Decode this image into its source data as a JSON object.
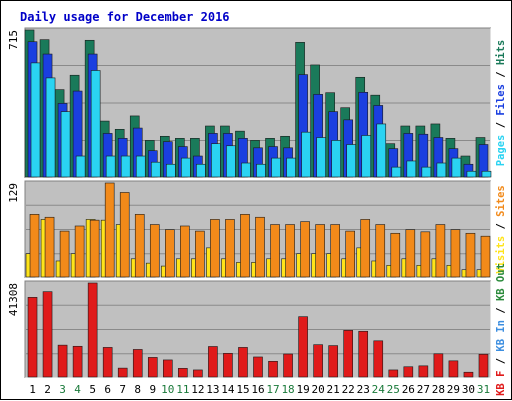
{
  "chart_data": {
    "type": "bar",
    "title": "Daily usage for December 2016",
    "categories": [
      "1",
      "2",
      "3",
      "4",
      "5",
      "6",
      "7",
      "8",
      "9",
      "10",
      "11",
      "12",
      "13",
      "14",
      "15",
      "16",
      "17",
      "18",
      "19",
      "20",
      "21",
      "22",
      "23",
      "24",
      "25",
      "26",
      "27",
      "28",
      "29",
      "30",
      "31"
    ],
    "weekend_days": [
      "3",
      "4",
      "10",
      "11",
      "17",
      "18",
      "24",
      "25",
      "31"
    ],
    "panels": [
      {
        "id": "top",
        "max_label": "715",
        "ylim": [
          0,
          715
        ],
        "series": [
          {
            "name": "Hits",
            "color": "#1a7a5a",
            "values": [
              715,
              668,
              425,
              495,
              665,
              272,
              232,
              297,
              178,
              198,
              188,
              188,
              248,
              248,
              223,
              178,
              188,
              198,
              655,
              545,
              410,
              337,
              485,
              398,
              162,
              248,
              248,
              258,
              188,
              102,
              192
            ]
          },
          {
            "name": "Files",
            "color": "#1a3fe0",
            "values": [
              658,
              598,
              358,
              418,
              598,
              212,
              188,
              238,
              128,
              172,
              148,
              102,
              212,
              212,
              188,
              142,
              148,
              142,
              498,
              402,
              318,
              278,
              412,
              348,
              138,
              212,
              208,
              192,
              138,
              62,
              158
            ]
          },
          {
            "name": "Pages",
            "color": "#2ad3f2",
            "values": [
              555,
              482,
              318,
              102,
              518,
              102,
              102,
              102,
              72,
              62,
              92,
              62,
              162,
              152,
              68,
              62,
              92,
              92,
              218,
              192,
              178,
              158,
              202,
              258,
              48,
              78,
              48,
              68,
              92,
              28,
              28
            ]
          }
        ],
        "axis_label_parts": [
          {
            "name": "Pages",
            "color": "#2ad3f2"
          },
          {
            "name": "Files",
            "color": "#1a3fe0"
          },
          {
            "name": "Hits",
            "color": "#1a7a5a"
          }
        ]
      },
      {
        "id": "middle",
        "max_label": "129",
        "ylim": [
          0,
          129
        ],
        "series": [
          {
            "name": "Visits",
            "color": "#ffe41a",
            "values": [
              32,
              79,
              22,
              32,
              79,
              78,
              72,
              25,
              19,
              15,
              25,
              25,
              40,
              25,
              20,
              20,
              25,
              25,
              32,
              32,
              32,
              25,
              40,
              22,
              16,
              25,
              16,
              25,
              16,
              10,
              10
            ]
          },
          {
            "name": "Sites",
            "color": "#f28a1a",
            "values": [
              86,
              82,
              63,
              70,
              78,
              129,
              116,
              86,
              72,
              65,
              70,
              63,
              79,
              79,
              86,
              82,
              72,
              72,
              76,
              72,
              72,
              63,
              79,
              72,
              60,
              65,
              62,
              72,
              65,
              60,
              56
            ]
          }
        ],
        "axis_label_parts": [
          {
            "name": "Visits",
            "color": "#ffe41a"
          },
          {
            "name": "Sites",
            "color": "#f28a1a"
          }
        ]
      },
      {
        "id": "bottom",
        "max_label": "41308",
        "ylim": [
          0,
          41308
        ],
        "series": [
          {
            "name": "KB F",
            "color": "#e01a1a",
            "values": [
              35000,
              37500,
              14000,
              13500,
              41308,
              13000,
              3900,
              12100,
              8600,
              7500,
              3800,
              3100,
              13400,
              10400,
              13000,
              8800,
              6900,
              10100,
              26500,
              14200,
              13800,
              20500,
              20100,
              15900,
              3100,
              4500,
              4900,
              10200,
              7100,
              2100,
              10000
            ]
          }
        ],
        "axis_label_parts": [
          {
            "name": "KB F",
            "color": "#e01a1a"
          },
          {
            "name": "KB In",
            "color": "#3b8ee0"
          },
          {
            "name": "KB Out",
            "color": "#2a8a3a"
          }
        ]
      }
    ]
  }
}
